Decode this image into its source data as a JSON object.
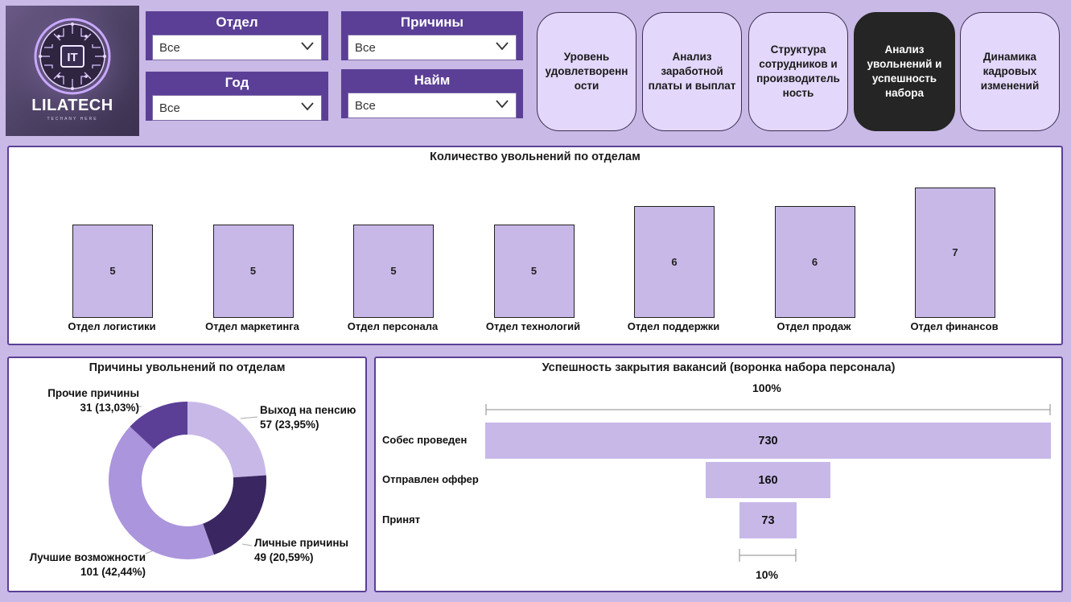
{
  "logo": {
    "name": "LILATECH",
    "tagline": "TECHANY HERE",
    "badge": "IT"
  },
  "slicers": {
    "department": {
      "label": "Отдел",
      "value": "Все"
    },
    "reasons": {
      "label": "Причины",
      "value": "Все"
    },
    "year": {
      "label": "Год",
      "value": "Все"
    },
    "hire": {
      "label": "Найм",
      "value": "Все"
    }
  },
  "nav": [
    {
      "label": "Уровень удовлетворенн ости",
      "active": false
    },
    {
      "label": "Анализ заработной платы и выплат",
      "active": false
    },
    {
      "label": "Структура сотрудников и производитель ность",
      "active": false
    },
    {
      "label": "Анализ увольнений и успешность набора",
      "active": true
    },
    {
      "label": "Динамика кадровых изменений",
      "active": false
    }
  ],
  "colors": {
    "background": "#c9b9e6",
    "accent": "#5b3f96",
    "bar": "#c8b8e8",
    "donut": [
      "#c8b8e8",
      "#3a2660",
      "#ab95dc",
      "#5b3f96"
    ]
  },
  "chart_data": [
    {
      "type": "bar",
      "title": "Количество увольнений по отделам",
      "categories": [
        "Отдел логистики",
        "Отдел маркетинга",
        "Отдел персонала",
        "Отдел технологий",
        "Отдел поддержки",
        "Отдел продаж",
        "Отдел финансов"
      ],
      "values": [
        5,
        5,
        5,
        5,
        6,
        6,
        7
      ]
    },
    {
      "type": "pie",
      "title": "Причины увольнений по отделам",
      "slices": [
        {
          "name": "Выход на пенсию",
          "value": 57,
          "label": "57 (23,95%)"
        },
        {
          "name": "Личные причины",
          "value": 49,
          "label": "49 (20,59%)"
        },
        {
          "name": "Лучшие возможности",
          "value": 101,
          "label": "101 (42,44%)"
        },
        {
          "name": "Прочие причины",
          "value": 31,
          "label": "31 (13,03%)"
        }
      ]
    },
    {
      "type": "bar",
      "title": "Успешность закрытия вакансий (воронка набора персонала)",
      "categories": [
        "Собес проведен",
        "Отправлен оффер",
        "Принят"
      ],
      "values": [
        730,
        160,
        73
      ],
      "top_percent": "100%",
      "bottom_percent": "10%"
    }
  ]
}
